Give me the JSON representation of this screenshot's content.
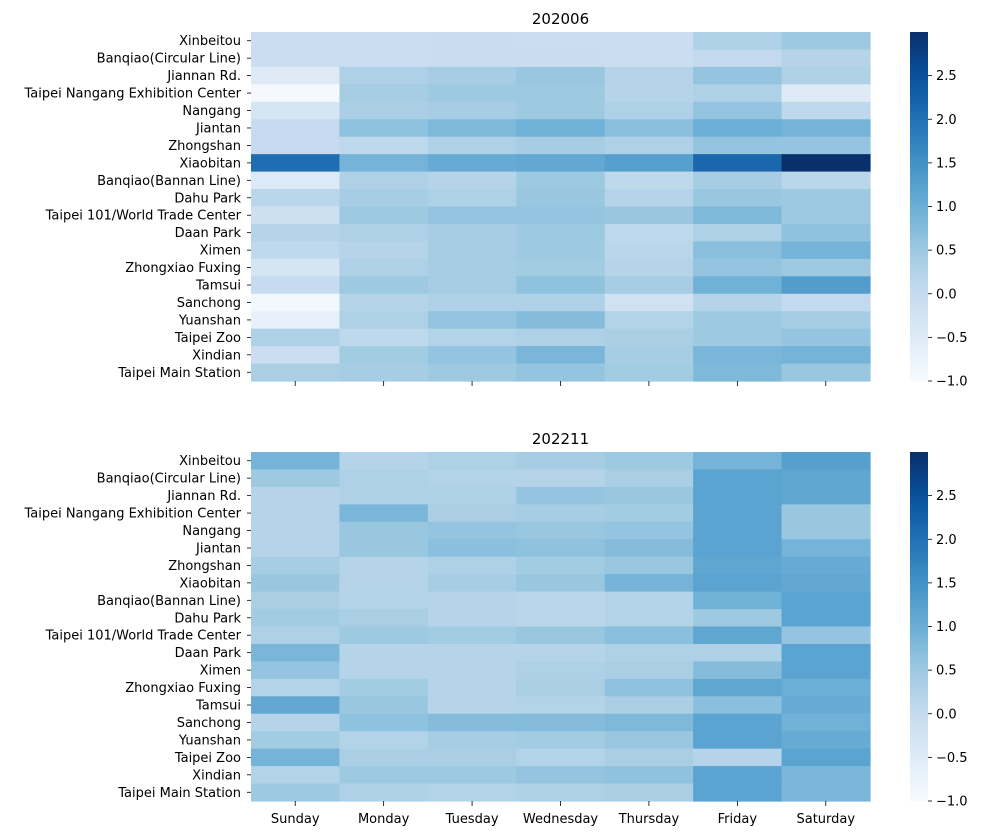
{
  "chart_data": [
    {
      "type": "heatmap",
      "title": "202006",
      "xlabel": "",
      "ylabel": "",
      "x_tick_labels_visible": false,
      "categories_x": [
        "Sunday",
        "Monday",
        "Tuesday",
        "Wednesday",
        "Thursday",
        "Friday",
        "Saturday"
      ],
      "categories_y": [
        "Xinbeitou",
        "Banqiao(Circular Line)",
        "Jiannan Rd. ",
        "Taipei Nangang Exhibition Center",
        "Nangang ",
        "Jiantan ",
        "Zhongshan ",
        "Xiaobitan",
        "Banqiao(Bannan Line)",
        "Dahu Park ",
        "Taipei 101/World Trade Center",
        "Daan Park",
        "Ximen ",
        "Zhongxiao Fuxing",
        "Tamsui",
        "Sanchong ",
        "Yuanshan",
        "Taipei Zoo",
        "Xindian ",
        "Taipei Main Station"
      ],
      "values": [
        [
          -0.1,
          -0.1,
          -0.05,
          -0.1,
          -0.1,
          0.3,
          0.5
        ],
        [
          -0.1,
          -0.1,
          -0.05,
          -0.05,
          -0.1,
          0.05,
          0.2
        ],
        [
          -0.5,
          0.3,
          0.4,
          0.55,
          0.2,
          0.6,
          0.3
        ],
        [
          -0.95,
          0.4,
          0.5,
          0.5,
          0.2,
          0.3,
          -0.5
        ],
        [
          -0.3,
          0.35,
          0.4,
          0.5,
          0.3,
          0.6,
          0.1
        ],
        [
          0.0,
          0.65,
          0.8,
          0.95,
          0.7,
          1.0,
          0.9
        ],
        [
          0.0,
          0.1,
          0.3,
          0.4,
          0.3,
          0.6,
          0.6
        ],
        [
          2.05,
          0.9,
          1.05,
          1.1,
          1.25,
          2.15,
          3.0
        ],
        [
          -0.45,
          0.3,
          0.2,
          0.5,
          0.1,
          0.4,
          0.15
        ],
        [
          0.15,
          0.4,
          0.3,
          0.55,
          0.2,
          0.55,
          0.5
        ],
        [
          -0.15,
          0.5,
          0.6,
          0.6,
          0.55,
          0.8,
          0.5
        ],
        [
          0.2,
          0.3,
          0.4,
          0.5,
          0.1,
          0.3,
          0.65
        ],
        [
          0.1,
          0.2,
          0.4,
          0.5,
          0.15,
          0.7,
          0.9
        ],
        [
          -0.3,
          0.3,
          0.4,
          0.45,
          0.2,
          0.6,
          0.5
        ],
        [
          0.0,
          0.5,
          0.4,
          0.65,
          0.4,
          0.95,
          1.3
        ],
        [
          -0.9,
          0.2,
          0.3,
          0.3,
          -0.2,
          0.2,
          0.05
        ],
        [
          -0.7,
          0.3,
          0.6,
          0.75,
          0.25,
          0.5,
          0.4
        ],
        [
          0.3,
          0.1,
          0.25,
          0.3,
          0.35,
          0.5,
          0.6
        ],
        [
          -0.1,
          0.45,
          0.6,
          0.85,
          0.4,
          0.85,
          0.9
        ],
        [
          0.35,
          0.4,
          0.5,
          0.6,
          0.45,
          0.8,
          0.55
        ]
      ],
      "colorbar": {
        "min": -1.0,
        "max": 3.0,
        "ticks": [
          -1.0,
          -0.5,
          0.0,
          0.5,
          1.0,
          1.5,
          2.0,
          2.5
        ]
      },
      "colormap": "Blues"
    },
    {
      "type": "heatmap",
      "title": "202211",
      "xlabel": "",
      "ylabel": "",
      "x_tick_labels_visible": true,
      "categories_x": [
        "Sunday",
        "Monday",
        "Tuesday",
        "Wednesday",
        "Thursday",
        "Friday",
        "Saturday"
      ],
      "categories_y": [
        "Xinbeitou",
        "Banqiao(Circular Line)",
        "Jiannan Rd. ",
        "Taipei Nangang Exhibition Center",
        "Nangang ",
        "Jiantan ",
        "Zhongshan ",
        "Xiaobitan",
        "Banqiao(Bannan Line)",
        "Dahu Park ",
        "Taipei 101/World Trade Center",
        "Daan Park",
        "Ximen ",
        "Zhongxiao Fuxing",
        "Tamsui",
        "Sanchong ",
        "Yuanshan",
        "Taipei Zoo",
        "Xindian ",
        "Taipei Main Station"
      ],
      "values": [
        [
          0.9,
          0.2,
          0.3,
          0.4,
          0.5,
          0.9,
          1.25
        ],
        [
          0.5,
          0.3,
          0.25,
          0.2,
          0.35,
          1.2,
          1.15
        ],
        [
          0.2,
          0.3,
          0.3,
          0.6,
          0.55,
          1.2,
          1.15
        ],
        [
          0.2,
          0.85,
          0.35,
          0.4,
          0.45,
          1.2,
          0.55
        ],
        [
          0.2,
          0.55,
          0.6,
          0.55,
          0.6,
          1.2,
          0.55
        ],
        [
          0.2,
          0.55,
          0.7,
          0.65,
          0.75,
          1.2,
          0.9
        ],
        [
          0.4,
          0.2,
          0.3,
          0.45,
          0.55,
          1.15,
          1.05
        ],
        [
          0.55,
          0.2,
          0.4,
          0.55,
          0.9,
          1.2,
          1.1
        ],
        [
          0.35,
          0.25,
          0.2,
          0.15,
          0.25,
          0.95,
          1.2
        ],
        [
          0.45,
          0.35,
          0.2,
          0.15,
          0.25,
          0.5,
          1.2
        ],
        [
          0.3,
          0.5,
          0.45,
          0.55,
          0.7,
          1.15,
          0.6
        ],
        [
          0.85,
          0.2,
          0.2,
          0.2,
          0.3,
          0.3,
          1.2
        ],
        [
          0.6,
          0.2,
          0.2,
          0.3,
          0.35,
          0.75,
          1.2
        ],
        [
          0.25,
          0.45,
          0.2,
          0.35,
          0.65,
          1.15,
          1.0
        ],
        [
          1.1,
          0.55,
          0.2,
          0.25,
          0.35,
          0.7,
          1.05
        ],
        [
          0.2,
          0.65,
          0.75,
          0.75,
          0.8,
          1.2,
          0.95
        ],
        [
          0.45,
          0.25,
          0.4,
          0.45,
          0.55,
          1.2,
          1.05
        ],
        [
          0.9,
          0.35,
          0.35,
          0.25,
          0.35,
          0.2,
          1.2
        ],
        [
          0.25,
          0.5,
          0.5,
          0.6,
          0.65,
          1.2,
          0.85
        ],
        [
          0.5,
          0.3,
          0.25,
          0.3,
          0.35,
          1.2,
          0.85
        ]
      ],
      "colorbar": {
        "min": -1.0,
        "max": 3.0,
        "ticks": [
          -1.0,
          -0.5,
          0.0,
          0.5,
          1.0,
          1.5,
          2.0,
          2.5
        ]
      },
      "colormap": "Blues"
    }
  ]
}
